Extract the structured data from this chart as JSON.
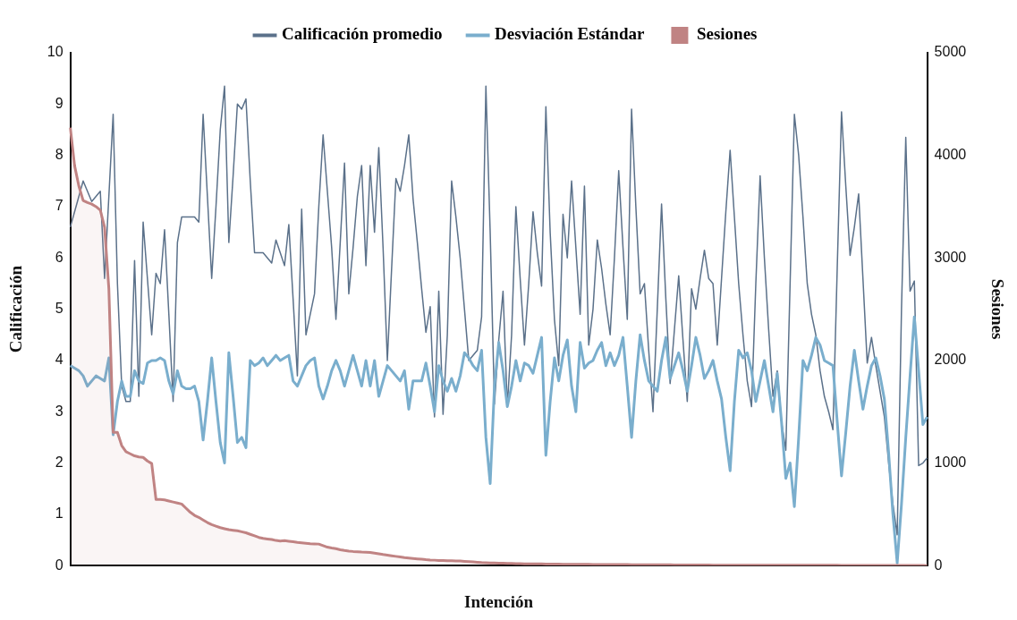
{
  "chart_data": {
    "type": "line",
    "xlabel": "Intención",
    "ylabel": "Calificación",
    "y2label": "Sesiones",
    "legend": "top",
    "tick_labels": "y",
    "ylim": [
      0,
      10
    ],
    "yticks": [
      0,
      1,
      2,
      3,
      4,
      5,
      6,
      7,
      8,
      9,
      10
    ],
    "y2lim": [
      0,
      5000
    ],
    "y2ticks": [
      0,
      1000,
      2000,
      3000,
      4000,
      5000
    ],
    "categories": [
      null,
      null,
      null,
      null,
      null,
      null,
      null,
      null,
      null,
      null,
      null,
      null,
      null,
      null,
      null,
      null,
      null,
      null,
      null,
      null,
      null,
      null,
      null,
      null,
      null,
      null,
      null,
      null,
      null,
      null,
      null,
      null,
      null,
      null,
      null,
      null,
      null,
      null,
      null,
      null,
      null,
      null,
      null,
      null,
      null,
      null,
      null,
      null,
      null,
      null,
      null,
      null,
      null,
      null,
      null,
      null,
      null,
      null,
      null,
      null,
      null,
      null,
      null,
      null,
      null,
      null,
      null,
      null,
      null,
      null,
      null,
      null,
      null,
      null,
      null,
      null,
      null,
      null,
      null,
      null,
      null,
      null,
      null,
      null,
      null,
      null,
      null,
      null,
      null,
      null,
      null,
      null,
      null,
      null,
      null,
      null,
      null,
      null,
      null,
      null,
      null,
      null,
      null,
      null,
      null,
      null,
      null,
      null,
      null,
      null,
      null,
      null,
      null,
      null,
      null,
      null,
      null,
      null,
      null,
      null,
      null,
      null,
      null,
      null,
      null,
      null,
      null,
      null,
      null,
      null,
      null,
      null,
      null,
      null,
      null,
      null,
      null,
      null,
      null,
      null,
      null,
      null,
      null,
      null,
      null,
      null,
      null,
      null,
      null,
      null,
      null,
      null,
      null,
      null,
      null,
      null,
      null,
      null,
      null,
      null,
      null,
      null,
      null,
      null,
      null,
      null,
      null,
      null,
      null,
      null,
      null,
      null,
      null,
      null,
      null,
      null,
      null,
      null,
      null,
      null,
      null,
      null,
      null,
      null,
      null,
      null,
      null,
      null,
      null,
      null,
      null,
      null,
      null,
      null,
      null,
      null,
      null,
      null,
      null,
      null,
      null
    ],
    "series": [
      {
        "name": "Calificación promedio",
        "type": "line",
        "color": "#5b718a",
        "values": [
          6.6,
          6.9,
          7.2,
          7.5,
          7.3,
          7.1,
          7.2,
          7.3,
          5.6,
          7.2,
          8.8,
          5.5,
          3.5,
          3.2,
          3.2,
          5.95,
          3.3,
          6.7,
          5.6,
          4.5,
          5.7,
          5.5,
          6.55,
          4.9,
          3.2,
          6.3,
          6.8,
          6.8,
          6.8,
          6.8,
          6.7,
          8.8,
          7.2,
          5.6,
          7.0,
          8.5,
          9.35,
          6.3,
          7.6,
          9.0,
          8.9,
          9.1,
          7.5,
          6.1,
          6.1,
          6.1,
          6.0,
          5.9,
          6.35,
          6.1,
          5.85,
          6.65,
          5.2,
          3.7,
          6.95,
          4.5,
          4.9,
          5.3,
          7.0,
          8.4,
          7.3,
          6.2,
          4.8,
          6.3,
          7.85,
          5.3,
          6.2,
          7.2,
          7.8,
          5.85,
          7.8,
          6.5,
          8.15,
          6.2,
          4.0,
          5.8,
          7.55,
          7.3,
          7.8,
          8.4,
          7.15,
          6.3,
          5.4,
          4.55,
          5.05,
          2.9,
          5.35,
          2.95,
          4.5,
          7.5,
          6.8,
          6.0,
          5.0,
          4.0,
          4.1,
          4.2,
          4.85,
          9.35,
          6.5,
          3.15,
          4.4,
          5.35,
          3.1,
          4.5,
          7.0,
          5.6,
          4.3,
          5.5,
          6.9,
          6.1,
          5.45,
          8.95,
          6.5,
          4.8,
          3.9,
          6.85,
          6.0,
          7.5,
          6.2,
          4.9,
          7.4,
          4.3,
          5.0,
          6.35,
          5.8,
          5.1,
          4.5,
          6.0,
          7.7,
          6.2,
          4.8,
          8.9,
          7.0,
          5.3,
          5.5,
          4.2,
          3.0,
          5.0,
          7.05,
          5.2,
          3.55,
          4.6,
          5.65,
          4.4,
          3.2,
          5.4,
          5.0,
          5.6,
          6.15,
          5.6,
          5.5,
          4.3,
          5.6,
          6.9,
          8.1,
          6.8,
          5.5,
          4.5,
          3.6,
          3.1,
          5.5,
          7.6,
          6.0,
          4.6,
          3.3,
          3.8,
          2.8,
          2.25,
          5.5,
          8.8,
          8.0,
          6.8,
          5.5,
          4.9,
          4.5,
          3.8,
          3.3,
          3.0,
          2.65,
          5.8,
          8.85,
          7.4,
          6.05,
          6.6,
          7.25,
          5.6,
          3.95,
          4.45,
          3.9,
          3.4,
          2.9,
          2.0,
          1.2,
          0.6,
          5.0,
          8.35,
          5.35,
          5.55,
          1.95,
          2.0,
          2.1
        ]
      },
      {
        "name": "Desviación Estándar",
        "type": "line",
        "color": "#7aaecd",
        "values": [
          3.9,
          3.85,
          3.8,
          3.7,
          3.5,
          3.6,
          3.7,
          3.65,
          3.6,
          4.05,
          2.55,
          3.2,
          3.6,
          3.3,
          3.3,
          3.8,
          3.6,
          3.55,
          3.95,
          4.0,
          4.0,
          4.05,
          4.0,
          3.6,
          3.35,
          3.8,
          3.5,
          3.45,
          3.45,
          3.5,
          3.2,
          2.45,
          3.2,
          4.05,
          3.2,
          2.4,
          2.0,
          4.15,
          3.3,
          2.4,
          2.5,
          2.3,
          4.0,
          3.9,
          3.95,
          4.05,
          3.9,
          4.0,
          4.1,
          4.0,
          4.05,
          4.1,
          3.6,
          3.5,
          3.7,
          3.9,
          4.0,
          4.05,
          3.5,
          3.25,
          3.5,
          3.8,
          4.0,
          3.8,
          3.5,
          3.8,
          4.1,
          3.8,
          3.5,
          4.0,
          3.5,
          4.0,
          3.3,
          3.6,
          3.9,
          3.8,
          3.7,
          3.6,
          3.8,
          3.05,
          3.6,
          3.6,
          3.6,
          3.95,
          3.5,
          3.0,
          3.9,
          3.6,
          3.4,
          3.65,
          3.4,
          3.7,
          4.15,
          4.05,
          3.9,
          3.8,
          4.2,
          2.5,
          1.6,
          3.5,
          4.35,
          3.8,
          3.1,
          3.5,
          4.0,
          3.6,
          3.95,
          3.9,
          3.75,
          4.1,
          4.45,
          2.15,
          3.2,
          4.05,
          3.6,
          4.1,
          4.4,
          3.5,
          3.0,
          4.35,
          3.85,
          3.95,
          4.0,
          4.2,
          4.35,
          3.9,
          4.15,
          3.9,
          4.1,
          4.45,
          3.5,
          2.5,
          3.6,
          4.5,
          4.0,
          3.6,
          3.5,
          3.4,
          4.0,
          4.45,
          3.65,
          3.9,
          4.15,
          3.8,
          3.4,
          3.9,
          4.45,
          4.1,
          3.65,
          3.8,
          4.0,
          3.6,
          3.25,
          2.5,
          1.85,
          3.2,
          4.2,
          4.05,
          4.15,
          3.8,
          3.2,
          3.6,
          4.0,
          3.5,
          3.0,
          3.75,
          2.8,
          1.7,
          2.0,
          1.15,
          2.5,
          4.0,
          3.8,
          4.1,
          4.45,
          4.3,
          4.0,
          3.95,
          3.9,
          2.8,
          1.75,
          2.6,
          3.5,
          4.2,
          3.6,
          3.05,
          3.5,
          3.9,
          4.05,
          3.7,
          3.25,
          2.2,
          1.0,
          0.05,
          1.2,
          2.5,
          3.7,
          4.85,
          3.8,
          2.75,
          2.9
        ]
      },
      {
        "name": "Sesiones",
        "type": "area",
        "axis": "y2",
        "color": "#c08383",
        "values": [
          4270,
          3900,
          3700,
          3560,
          3540,
          3525,
          3500,
          3465,
          3300,
          2700,
          1300,
          1300,
          1170,
          1110,
          1090,
          1070,
          1060,
          1055,
          1020,
          995,
          645,
          645,
          640,
          630,
          620,
          610,
          600,
          560,
          520,
          490,
          470,
          445,
          420,
          400,
          385,
          370,
          360,
          350,
          345,
          340,
          330,
          320,
          305,
          290,
          275,
          265,
          260,
          255,
          245,
          240,
          243,
          238,
          232,
          226,
          222,
          218,
          214,
          212,
          210,
          195,
          180,
          172,
          165,
          155,
          148,
          142,
          138,
          135,
          132,
          130,
          128,
          122,
          115,
          108,
          102,
          96,
          90,
          84,
          78,
          74,
          70,
          66,
          62,
          58,
          55,
          53,
          50,
          49,
          48,
          47,
          46,
          45,
          42,
          39,
          36,
          33,
          30,
          28,
          26,
          25,
          24,
          23,
          22,
          21,
          20,
          19,
          18,
          17,
          17,
          16,
          16,
          15,
          15,
          14,
          14,
          13,
          13,
          13,
          12,
          12,
          12,
          12,
          11,
          11,
          11,
          11,
          11,
          10,
          10,
          10,
          10,
          9,
          9,
          9,
          9,
          9,
          8,
          8,
          8,
          8,
          8,
          7,
          7,
          7,
          7,
          7,
          6,
          6,
          6,
          6,
          5,
          5,
          5,
          5,
          5,
          5,
          5,
          5,
          5,
          4,
          4,
          4,
          4,
          4,
          4,
          4,
          4,
          4,
          4,
          4,
          3,
          3,
          3,
          3,
          3,
          3,
          3,
          3,
          3,
          3,
          2,
          2,
          2,
          2,
          2,
          2,
          2,
          2,
          2,
          2,
          1,
          1,
          1,
          1,
          1,
          1,
          1,
          1,
          1,
          1,
          0
        ]
      }
    ]
  }
}
